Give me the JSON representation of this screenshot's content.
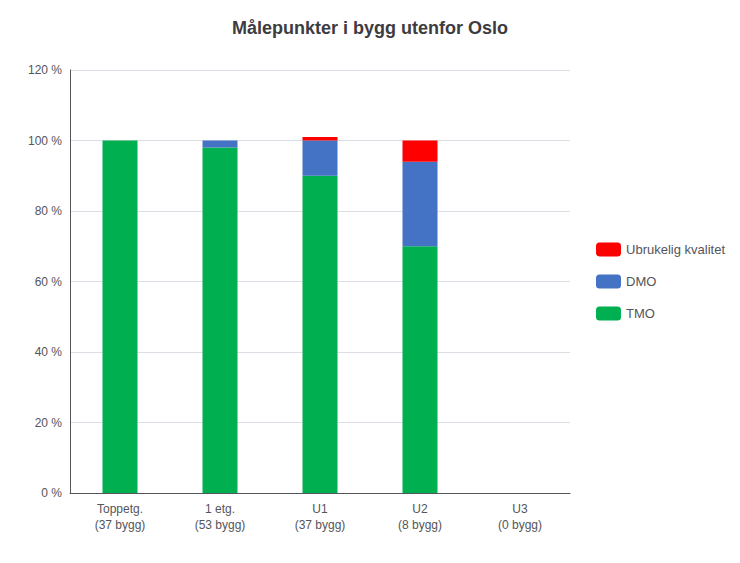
{
  "chart_data": {
    "type": "bar",
    "title": "Målepunkter i bygg utenfor Oslo",
    "categories": [
      "Toppetg.\n(37 bygg)",
      "1 etg.\n(53 bygg)",
      "U1\n(37 bygg)",
      "U2\n(8 bygg)",
      "U3\n(0 bygg)"
    ],
    "series": [
      {
        "name": "TMO",
        "color": "#00B050",
        "values": [
          100,
          98,
          90,
          70,
          0
        ]
      },
      {
        "name": "DMO",
        "color": "#4472C4",
        "values": [
          0,
          2,
          10,
          24,
          0
        ]
      },
      {
        "name": "Ubrukelig kvalitet",
        "color": "#FF0000",
        "values": [
          0,
          0,
          1,
          6,
          0
        ]
      }
    ],
    "stacked": true,
    "ylim": [
      0,
      120
    ],
    "yticks": [
      {
        "value": 0,
        "label": "0 %"
      },
      {
        "value": 20,
        "label": "20 %"
      },
      {
        "value": 40,
        "label": "40 %"
      },
      {
        "value": 60,
        "label": "60 %"
      },
      {
        "value": 80,
        "label": "80 %"
      },
      {
        "value": 100,
        "label": "100 %"
      },
      {
        "value": 120,
        "label": "120 %"
      }
    ],
    "grid": true,
    "legend": "right"
  }
}
